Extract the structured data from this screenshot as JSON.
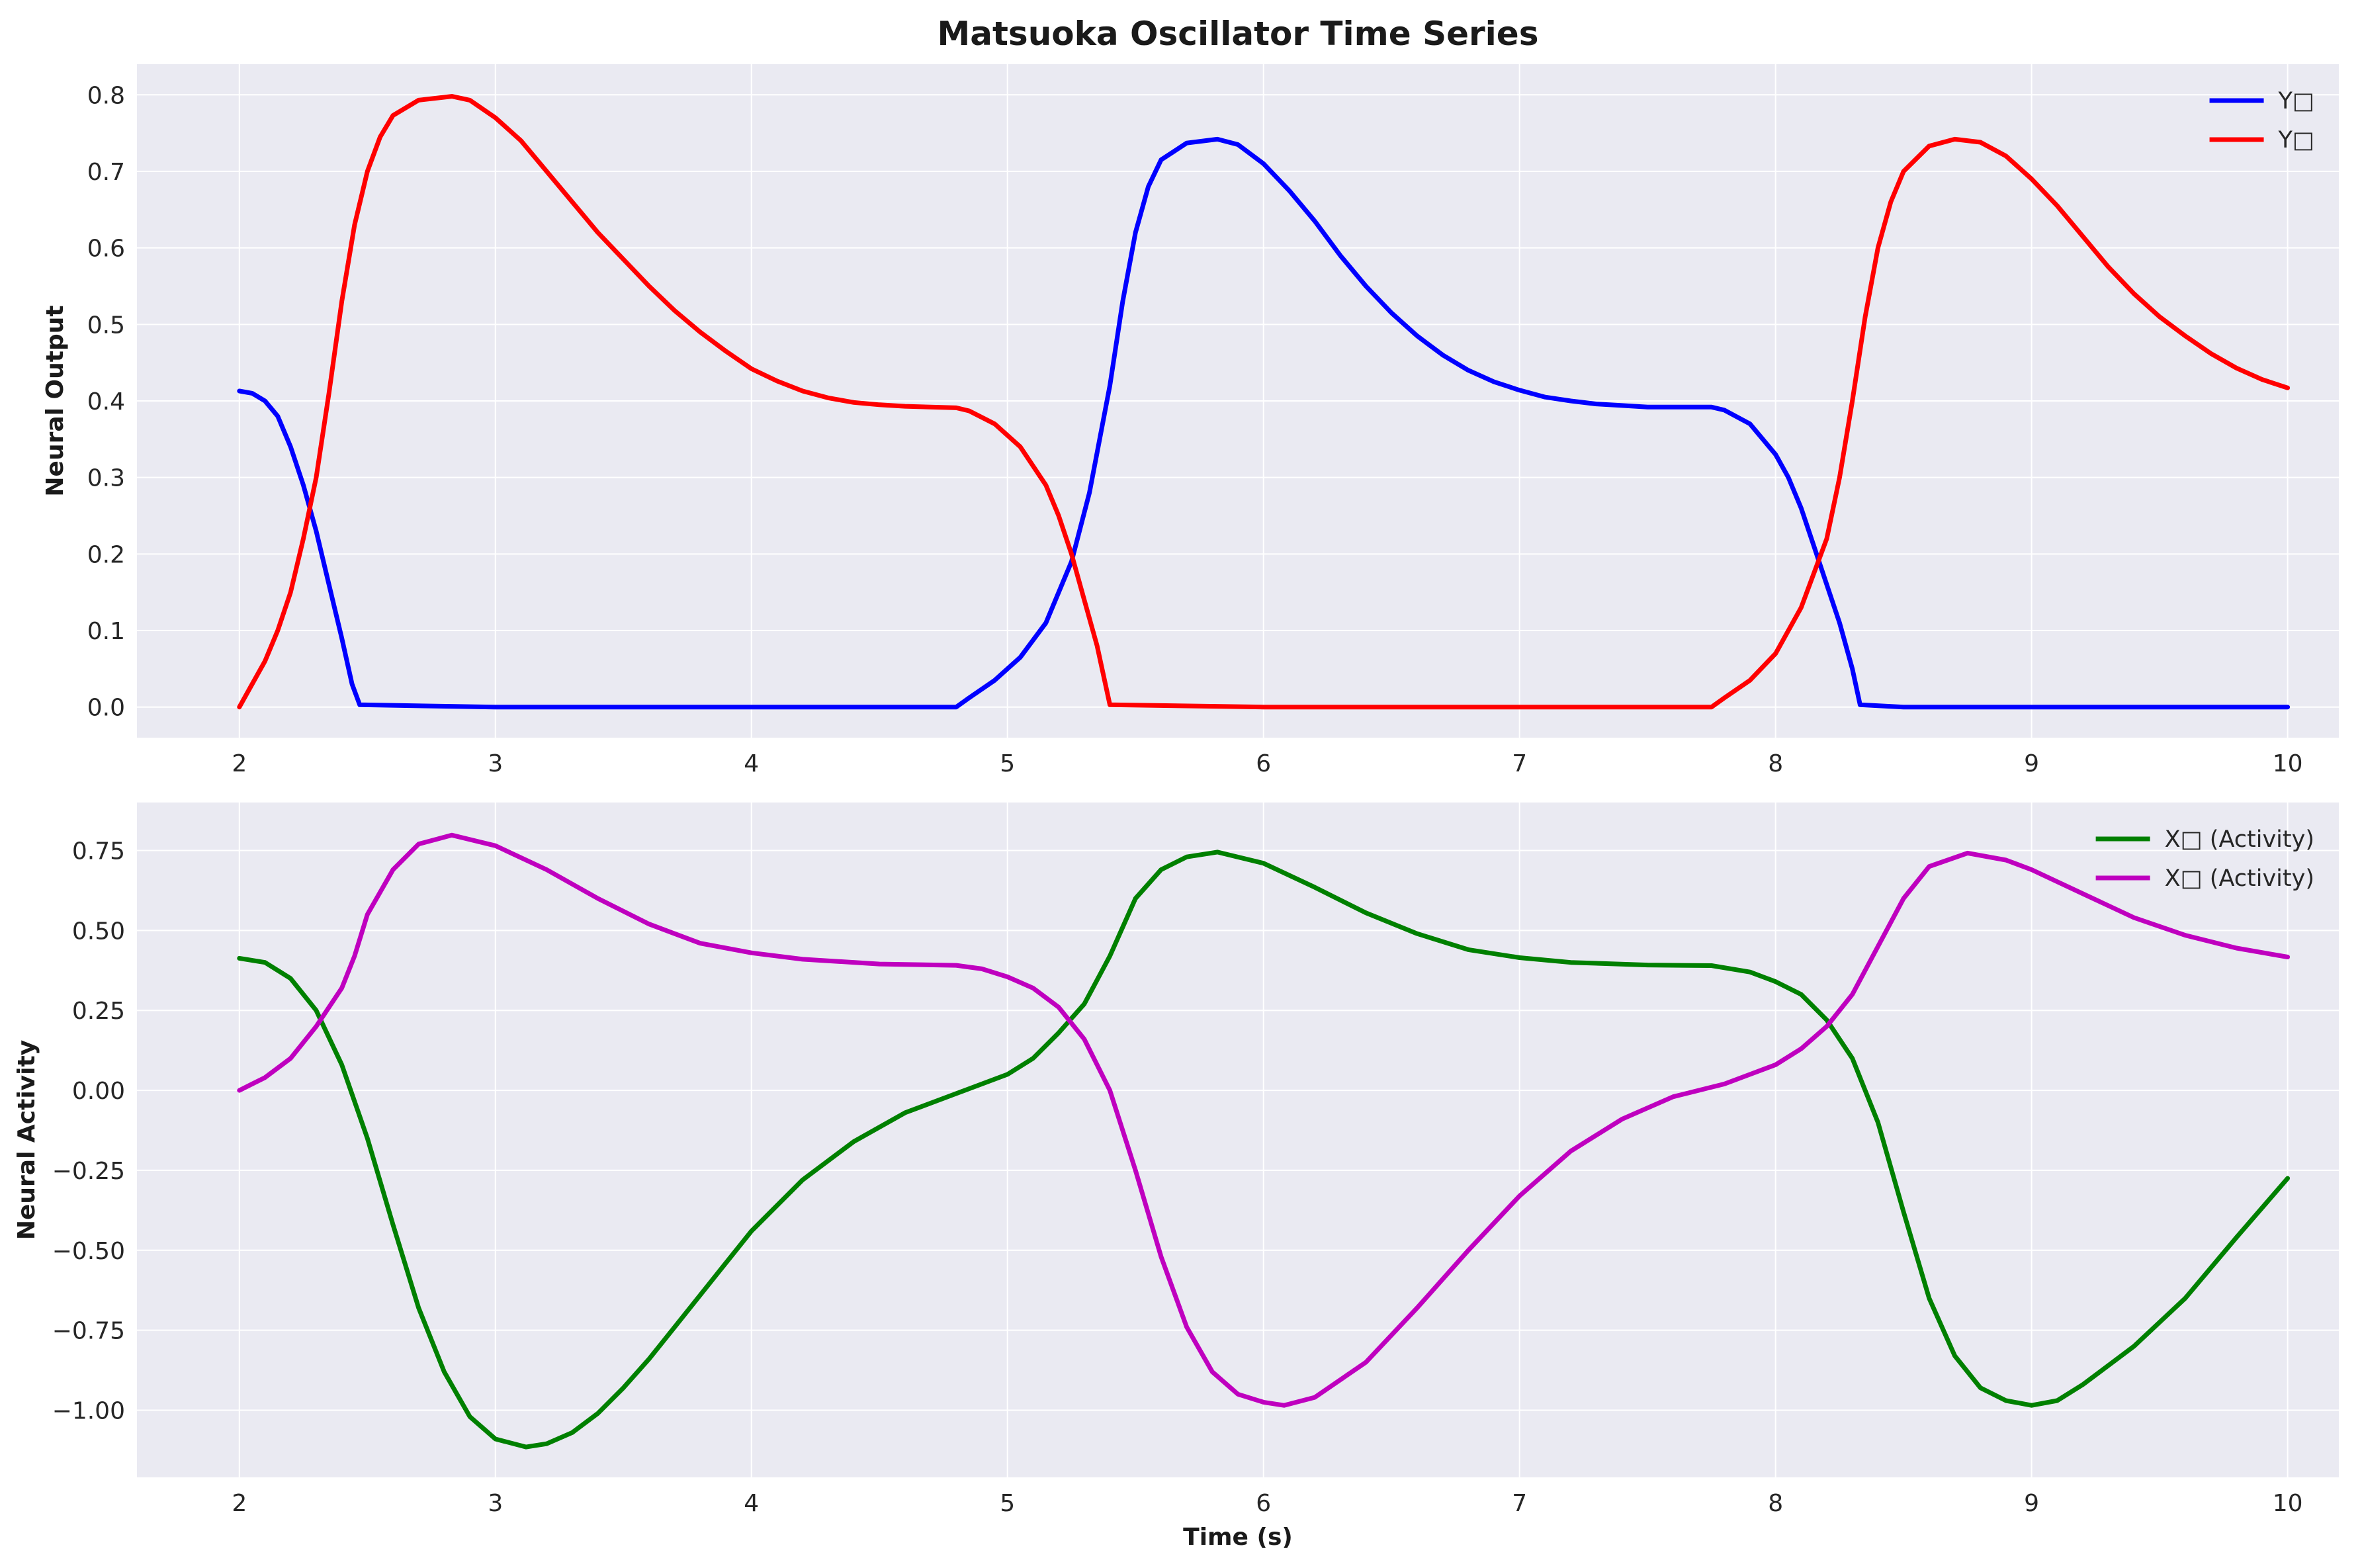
{
  "figure_title": "Matsuoka Oscillator Time Series",
  "chart_data": [
    {
      "type": "line",
      "title": "",
      "xlabel": "",
      "ylabel": "Neural Output",
      "xlim": [
        1.6,
        10.2
      ],
      "ylim": [
        -0.04,
        0.84
      ],
      "xticks": [
        2,
        3,
        4,
        5,
        6,
        7,
        8,
        9,
        10
      ],
      "xtick_labels": [
        "2",
        "3",
        "4",
        "5",
        "6",
        "7",
        "8",
        "9",
        "10"
      ],
      "yticks": [
        0.0,
        0.1,
        0.2,
        0.3,
        0.4,
        0.5,
        0.6,
        0.7,
        0.8
      ],
      "ytick_labels": [
        "0.0",
        "0.1",
        "0.2",
        "0.3",
        "0.4",
        "0.5",
        "0.6",
        "0.7",
        "0.8"
      ],
      "grid": true,
      "legend_position": "upper-right",
      "series": [
        {
          "name": "Y□",
          "color": "#0000ff",
          "points": [
            [
              2.0,
              0.413
            ],
            [
              2.05,
              0.41
            ],
            [
              2.1,
              0.4
            ],
            [
              2.15,
              0.38
            ],
            [
              2.2,
              0.34
            ],
            [
              2.25,
              0.29
            ],
            [
              2.3,
              0.23
            ],
            [
              2.35,
              0.16
            ],
            [
              2.4,
              0.09
            ],
            [
              2.44,
              0.03
            ],
            [
              2.47,
              0.003
            ],
            [
              3.0,
              0.0
            ],
            [
              4.0,
              0.0
            ],
            [
              4.5,
              0.0
            ],
            [
              4.8,
              0.0
            ],
            [
              4.85,
              0.012
            ],
            [
              4.95,
              0.035
            ],
            [
              5.05,
              0.065
            ],
            [
              5.15,
              0.11
            ],
            [
              5.25,
              0.19
            ],
            [
              5.32,
              0.28
            ],
            [
              5.4,
              0.42
            ],
            [
              5.45,
              0.53
            ],
            [
              5.5,
              0.62
            ],
            [
              5.55,
              0.68
            ],
            [
              5.6,
              0.715
            ],
            [
              5.7,
              0.737
            ],
            [
              5.82,
              0.742
            ],
            [
              5.9,
              0.735
            ],
            [
              6.0,
              0.71
            ],
            [
              6.1,
              0.675
            ],
            [
              6.2,
              0.635
            ],
            [
              6.3,
              0.59
            ],
            [
              6.4,
              0.55
            ],
            [
              6.5,
              0.515
            ],
            [
              6.6,
              0.485
            ],
            [
              6.7,
              0.46
            ],
            [
              6.8,
              0.44
            ],
            [
              6.9,
              0.425
            ],
            [
              7.0,
              0.414
            ],
            [
              7.1,
              0.405
            ],
            [
              7.2,
              0.4
            ],
            [
              7.3,
              0.396
            ],
            [
              7.4,
              0.394
            ],
            [
              7.5,
              0.392
            ],
            [
              7.6,
              0.392
            ],
            [
              7.75,
              0.392
            ],
            [
              7.8,
              0.388
            ],
            [
              7.9,
              0.37
            ],
            [
              8.0,
              0.33
            ],
            [
              8.05,
              0.3
            ],
            [
              8.1,
              0.26
            ],
            [
              8.15,
              0.21
            ],
            [
              8.2,
              0.16
            ],
            [
              8.25,
              0.11
            ],
            [
              8.3,
              0.05
            ],
            [
              8.33,
              0.003
            ],
            [
              8.5,
              0.0
            ],
            [
              9.0,
              0.0
            ],
            [
              10.0,
              0.0
            ]
          ]
        },
        {
          "name": "Y□",
          "color": "#ff0000",
          "points": [
            [
              2.0,
              0.0
            ],
            [
              2.05,
              0.03
            ],
            [
              2.1,
              0.06
            ],
            [
              2.15,
              0.1
            ],
            [
              2.2,
              0.15
            ],
            [
              2.25,
              0.22
            ],
            [
              2.3,
              0.3
            ],
            [
              2.35,
              0.41
            ],
            [
              2.4,
              0.53
            ],
            [
              2.45,
              0.63
            ],
            [
              2.5,
              0.7
            ],
            [
              2.55,
              0.745
            ],
            [
              2.6,
              0.773
            ],
            [
              2.7,
              0.793
            ],
            [
              2.83,
              0.798
            ],
            [
              2.9,
              0.793
            ],
            [
              3.0,
              0.77
            ],
            [
              3.1,
              0.74
            ],
            [
              3.2,
              0.7
            ],
            [
              3.3,
              0.66
            ],
            [
              3.4,
              0.62
            ],
            [
              3.5,
              0.585
            ],
            [
              3.6,
              0.55
            ],
            [
              3.7,
              0.518
            ],
            [
              3.8,
              0.49
            ],
            [
              3.9,
              0.465
            ],
            [
              4.0,
              0.442
            ],
            [
              4.1,
              0.426
            ],
            [
              4.2,
              0.413
            ],
            [
              4.3,
              0.404
            ],
            [
              4.4,
              0.398
            ],
            [
              4.5,
              0.395
            ],
            [
              4.6,
              0.393
            ],
            [
              4.8,
              0.391
            ],
            [
              4.85,
              0.387
            ],
            [
              4.95,
              0.37
            ],
            [
              5.05,
              0.34
            ],
            [
              5.15,
              0.29
            ],
            [
              5.2,
              0.25
            ],
            [
              5.25,
              0.2
            ],
            [
              5.3,
              0.14
            ],
            [
              5.35,
              0.08
            ],
            [
              5.4,
              0.003
            ],
            [
              6.0,
              0.0
            ],
            [
              7.0,
              0.0
            ],
            [
              7.75,
              0.0
            ],
            [
              7.8,
              0.012
            ],
            [
              7.9,
              0.035
            ],
            [
              8.0,
              0.07
            ],
            [
              8.1,
              0.13
            ],
            [
              8.2,
              0.22
            ],
            [
              8.25,
              0.3
            ],
            [
              8.3,
              0.4
            ],
            [
              8.35,
              0.51
            ],
            [
              8.4,
              0.6
            ],
            [
              8.45,
              0.66
            ],
            [
              8.5,
              0.7
            ],
            [
              8.6,
              0.733
            ],
            [
              8.7,
              0.742
            ],
            [
              8.8,
              0.738
            ],
            [
              8.9,
              0.72
            ],
            [
              9.0,
              0.69
            ],
            [
              9.1,
              0.655
            ],
            [
              9.2,
              0.615
            ],
            [
              9.3,
              0.575
            ],
            [
              9.4,
              0.54
            ],
            [
              9.5,
              0.51
            ],
            [
              9.6,
              0.485
            ],
            [
              9.7,
              0.462
            ],
            [
              9.8,
              0.443
            ],
            [
              9.9,
              0.428
            ],
            [
              10.0,
              0.417
            ]
          ]
        }
      ]
    },
    {
      "type": "line",
      "title": "",
      "xlabel": "Time (s)",
      "ylabel": "Neural Activity",
      "xlim": [
        1.6,
        10.2
      ],
      "ylim": [
        -1.21,
        0.9
      ],
      "xticks": [
        2,
        3,
        4,
        5,
        6,
        7,
        8,
        9,
        10
      ],
      "xtick_labels": [
        "2",
        "3",
        "4",
        "5",
        "6",
        "7",
        "8",
        "9",
        "10"
      ],
      "yticks": [
        0.75,
        0.5,
        0.25,
        0.0,
        -0.25,
        -0.5,
        -0.75,
        -1.0
      ],
      "ytick_labels": [
        "0.75",
        "0.50",
        "0.25",
        "0.00",
        "−0.25",
        "−0.50",
        "−0.75",
        "−1.00"
      ],
      "grid": true,
      "legend_position": "upper-right",
      "series": [
        {
          "name": "X□ (Activity)",
          "color": "#008000",
          "points": [
            [
              2.0,
              0.413
            ],
            [
              2.1,
              0.4
            ],
            [
              2.2,
              0.35
            ],
            [
              2.3,
              0.25
            ],
            [
              2.4,
              0.08
            ],
            [
              2.5,
              -0.15
            ],
            [
              2.6,
              -0.42
            ],
            [
              2.7,
              -0.68
            ],
            [
              2.8,
              -0.88
            ],
            [
              2.9,
              -1.02
            ],
            [
              3.0,
              -1.09
            ],
            [
              3.12,
              -1.115
            ],
            [
              3.2,
              -1.105
            ],
            [
              3.3,
              -1.07
            ],
            [
              3.4,
              -1.01
            ],
            [
              3.5,
              -0.93
            ],
            [
              3.6,
              -0.84
            ],
            [
              3.7,
              -0.74
            ],
            [
              3.8,
              -0.64
            ],
            [
              3.9,
              -0.54
            ],
            [
              4.0,
              -0.44
            ],
            [
              4.2,
              -0.28
            ],
            [
              4.4,
              -0.16
            ],
            [
              4.6,
              -0.07
            ],
            [
              4.8,
              -0.01
            ],
            [
              5.0,
              0.05
            ],
            [
              5.1,
              0.1
            ],
            [
              5.2,
              0.18
            ],
            [
              5.3,
              0.27
            ],
            [
              5.4,
              0.42
            ],
            [
              5.5,
              0.6
            ],
            [
              5.6,
              0.69
            ],
            [
              5.7,
              0.73
            ],
            [
              5.82,
              0.745
            ],
            [
              6.0,
              0.71
            ],
            [
              6.2,
              0.635
            ],
            [
              6.4,
              0.555
            ],
            [
              6.6,
              0.49
            ],
            [
              6.8,
              0.44
            ],
            [
              7.0,
              0.415
            ],
            [
              7.2,
              0.4
            ],
            [
              7.5,
              0.392
            ],
            [
              7.75,
              0.39
            ],
            [
              7.9,
              0.37
            ],
            [
              8.0,
              0.34
            ],
            [
              8.1,
              0.3
            ],
            [
              8.2,
              0.22
            ],
            [
              8.3,
              0.1
            ],
            [
              8.4,
              -0.1
            ],
            [
              8.5,
              -0.38
            ],
            [
              8.6,
              -0.65
            ],
            [
              8.7,
              -0.83
            ],
            [
              8.8,
              -0.93
            ],
            [
              8.9,
              -0.97
            ],
            [
              9.0,
              -0.985
            ],
            [
              9.1,
              -0.97
            ],
            [
              9.2,
              -0.92
            ],
            [
              9.4,
              -0.8
            ],
            [
              9.6,
              -0.65
            ],
            [
              9.8,
              -0.46
            ],
            [
              10.0,
              -0.275
            ]
          ]
        },
        {
          "name": "X□ (Activity)",
          "color": "#bf00bf",
          "points": [
            [
              2.0,
              0.0
            ],
            [
              2.1,
              0.04
            ],
            [
              2.2,
              0.1
            ],
            [
              2.3,
              0.2
            ],
            [
              2.4,
              0.32
            ],
            [
              2.45,
              0.42
            ],
            [
              2.5,
              0.55
            ],
            [
              2.6,
              0.69
            ],
            [
              2.7,
              0.77
            ],
            [
              2.83,
              0.798
            ],
            [
              3.0,
              0.765
            ],
            [
              3.2,
              0.69
            ],
            [
              3.4,
              0.6
            ],
            [
              3.6,
              0.52
            ],
            [
              3.8,
              0.46
            ],
            [
              4.0,
              0.43
            ],
            [
              4.2,
              0.41
            ],
            [
              4.5,
              0.395
            ],
            [
              4.8,
              0.391
            ],
            [
              4.9,
              0.38
            ],
            [
              5.0,
              0.355
            ],
            [
              5.1,
              0.32
            ],
            [
              5.2,
              0.26
            ],
            [
              5.3,
              0.16
            ],
            [
              5.4,
              0.0
            ],
            [
              5.5,
              -0.25
            ],
            [
              5.6,
              -0.52
            ],
            [
              5.7,
              -0.74
            ],
            [
              5.8,
              -0.88
            ],
            [
              5.9,
              -0.95
            ],
            [
              6.0,
              -0.975
            ],
            [
              6.08,
              -0.985
            ],
            [
              6.2,
              -0.96
            ],
            [
              6.4,
              -0.85
            ],
            [
              6.6,
              -0.68
            ],
            [
              6.8,
              -0.5
            ],
            [
              7.0,
              -0.33
            ],
            [
              7.2,
              -0.19
            ],
            [
              7.4,
              -0.09
            ],
            [
              7.6,
              -0.02
            ],
            [
              7.8,
              0.02
            ],
            [
              7.9,
              0.05
            ],
            [
              8.0,
              0.08
            ],
            [
              8.1,
              0.13
            ],
            [
              8.2,
              0.2
            ],
            [
              8.3,
              0.3
            ],
            [
              8.4,
              0.45
            ],
            [
              8.5,
              0.6
            ],
            [
              8.6,
              0.7
            ],
            [
              8.75,
              0.742
            ],
            [
              8.9,
              0.72
            ],
            [
              9.0,
              0.69
            ],
            [
              9.2,
              0.615
            ],
            [
              9.4,
              0.54
            ],
            [
              9.6,
              0.485
            ],
            [
              9.8,
              0.445
            ],
            [
              10.0,
              0.417
            ]
          ]
        }
      ]
    }
  ]
}
